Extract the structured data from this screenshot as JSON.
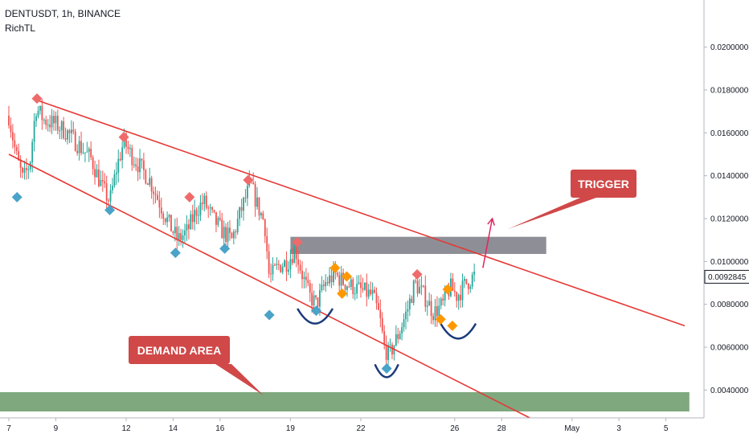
{
  "header": {
    "symbol_line": "DENTUSDT, 1h, BINANCE",
    "indicator": "RichTL"
  },
  "colors": {
    "up": "#26a69a",
    "down": "#ef5350",
    "trendline": "#e53935",
    "grey_zone": "#8e8e96",
    "demand_zone": "#7fa87f",
    "callout": "#d04848",
    "diamond_red": "#ef6a6a",
    "diamond_blue": "#4aa3c9",
    "diamond_orange": "#ff9800",
    "arc": "#1a3a7a",
    "arrow": "#e0245e"
  },
  "annotations": {
    "trigger": "TRIGGER",
    "demand": "DEMAND AREA"
  },
  "chart_data": {
    "type": "candlestick",
    "title": "",
    "ylim": [
      0.0027,
      0.0222
    ],
    "yticks": [
      "0.0200000",
      "0.0180000",
      "0.0160000",
      "0.0140000",
      "0.0120000",
      "0.0100000",
      "0.0080000",
      "0.0060000",
      "0.0040000"
    ],
    "yvalues": [
      0.02,
      0.018,
      0.016,
      0.014,
      0.012,
      0.01,
      0.008,
      0.006,
      0.004
    ],
    "xticks": [
      {
        "label": "7",
        "day": 7
      },
      {
        "label": "9",
        "day": 9
      },
      {
        "label": "12",
        "day": 12
      },
      {
        "label": "14",
        "day": 14
      },
      {
        "label": "16",
        "day": 16
      },
      {
        "label": "19",
        "day": 19
      },
      {
        "label": "22",
        "day": 22
      },
      {
        "label": "26",
        "day": 26
      },
      {
        "label": "28",
        "day": 28
      },
      {
        "label": "May",
        "day": 31
      },
      {
        "label": "3",
        "day": 33
      },
      {
        "label": "5",
        "day": 35
      }
    ],
    "current_price": "0.0092845",
    "current_price_value": 0.0092845,
    "price_path": [
      [
        7.0,
        0.0168
      ],
      [
        7.3,
        0.015
      ],
      [
        7.6,
        0.0138
      ],
      [
        7.9,
        0.0146
      ],
      [
        8.15,
        0.0172
      ],
      [
        8.5,
        0.0166
      ],
      [
        9.0,
        0.0164
      ],
      [
        9.5,
        0.016
      ],
      [
        10.0,
        0.0154
      ],
      [
        10.5,
        0.0148
      ],
      [
        11.0,
        0.0134
      ],
      [
        11.3,
        0.0128
      ],
      [
        11.6,
        0.0144
      ],
      [
        11.9,
        0.0156
      ],
      [
        12.2,
        0.015
      ],
      [
        12.6,
        0.0144
      ],
      [
        13.0,
        0.0138
      ],
      [
        13.4,
        0.0128
      ],
      [
        13.8,
        0.0118
      ],
      [
        14.2,
        0.011
      ],
      [
        14.6,
        0.0114
      ],
      [
        15.0,
        0.0124
      ],
      [
        15.3,
        0.0128
      ],
      [
        15.7,
        0.012
      ],
      [
        16.1,
        0.0114
      ],
      [
        16.5,
        0.011
      ],
      [
        16.9,
        0.0124
      ],
      [
        17.3,
        0.0136
      ],
      [
        17.6,
        0.0126
      ],
      [
        17.9,
        0.0118
      ],
      [
        18.1,
        0.0092
      ],
      [
        18.5,
        0.0098
      ],
      [
        18.9,
        0.01
      ],
      [
        19.2,
        0.0106
      ],
      [
        19.5,
        0.0094
      ],
      [
        19.8,
        0.0084
      ],
      [
        20.1,
        0.008
      ],
      [
        20.5,
        0.009
      ],
      [
        20.9,
        0.0094
      ],
      [
        21.3,
        0.009
      ],
      [
        21.7,
        0.0088
      ],
      [
        22.1,
        0.0086
      ],
      [
        22.5,
        0.0084
      ],
      [
        22.8,
        0.0074
      ],
      [
        23.0,
        0.006
      ],
      [
        23.2,
        0.0056
      ],
      [
        23.6,
        0.0066
      ],
      [
        24.0,
        0.0078
      ],
      [
        24.3,
        0.009
      ],
      [
        24.7,
        0.0084
      ],
      [
        25.1,
        0.0076
      ],
      [
        25.5,
        0.008
      ],
      [
        25.8,
        0.0088
      ],
      [
        26.1,
        0.0084
      ],
      [
        26.5,
        0.009
      ],
      [
        26.9,
        0.0094
      ]
    ],
    "lines": [
      {
        "name": "",
        "from": [
          8.0,
          0.0176
        ],
        "to": [
          35.8,
          0.007
        ]
      },
      {
        "name": "",
        "from": [
          7.0,
          0.015
        ],
        "to": [
          29.2,
          0.0027
        ]
      }
    ],
    "zones": [
      {
        "name": "",
        "from_day": 19.0,
        "to_day": 29.9,
        "low": 0.01035,
        "high": 0.01115,
        "color_key": "grey_zone"
      },
      {
        "name": "",
        "from_day": 6.5,
        "to_day": 36.0,
        "low": 0.003,
        "high": 0.0039,
        "color_key": "demand_zone"
      }
    ],
    "markers": [
      {
        "day": 7.35,
        "price": 0.013,
        "color_key": "diamond_blue"
      },
      {
        "day": 8.2,
        "price": 0.0176,
        "color_key": "diamond_red"
      },
      {
        "day": 11.3,
        "price": 0.0124,
        "color_key": "diamond_blue"
      },
      {
        "day": 11.9,
        "price": 0.0158,
        "color_key": "diamond_red"
      },
      {
        "day": 14.1,
        "price": 0.0104,
        "color_key": "diamond_blue"
      },
      {
        "day": 14.7,
        "price": 0.013,
        "color_key": "diamond_red"
      },
      {
        "day": 16.2,
        "price": 0.0106,
        "color_key": "diamond_blue"
      },
      {
        "day": 17.2,
        "price": 0.0138,
        "color_key": "diamond_red"
      },
      {
        "day": 18.1,
        "price": 0.0075,
        "color_key": "diamond_blue"
      },
      {
        "day": 19.3,
        "price": 0.0109,
        "color_key": "diamond_red"
      },
      {
        "day": 20.1,
        "price": 0.0077,
        "color_key": "diamond_blue"
      },
      {
        "day": 20.9,
        "price": 0.0097,
        "color_key": "diamond_orange"
      },
      {
        "day": 21.2,
        "price": 0.0085,
        "color_key": "diamond_orange"
      },
      {
        "day": 21.4,
        "price": 0.0093,
        "color_key": "diamond_orange"
      },
      {
        "day": 23.1,
        "price": 0.005,
        "color_key": "diamond_blue"
      },
      {
        "day": 24.4,
        "price": 0.0094,
        "color_key": "diamond_red"
      },
      {
        "day": 25.4,
        "price": 0.0073,
        "color_key": "diamond_orange"
      },
      {
        "day": 25.7,
        "price": 0.0087,
        "color_key": "diamond_orange"
      },
      {
        "day": 25.9,
        "price": 0.007,
        "color_key": "diamond_orange"
      }
    ],
    "arcs": [
      {
        "from_day": 19.3,
        "to_day": 20.8,
        "top": 0.0078,
        "bottom": 0.0071
      },
      {
        "from_day": 22.6,
        "to_day": 23.6,
        "top": 0.0052,
        "bottom": 0.0046
      },
      {
        "from_day": 25.4,
        "to_day": 26.9,
        "top": 0.0071,
        "bottom": 0.0064
      }
    ],
    "arrow": {
      "from": [
        27.2,
        0.0097
      ],
      "to": [
        27.6,
        0.012
      ]
    }
  }
}
